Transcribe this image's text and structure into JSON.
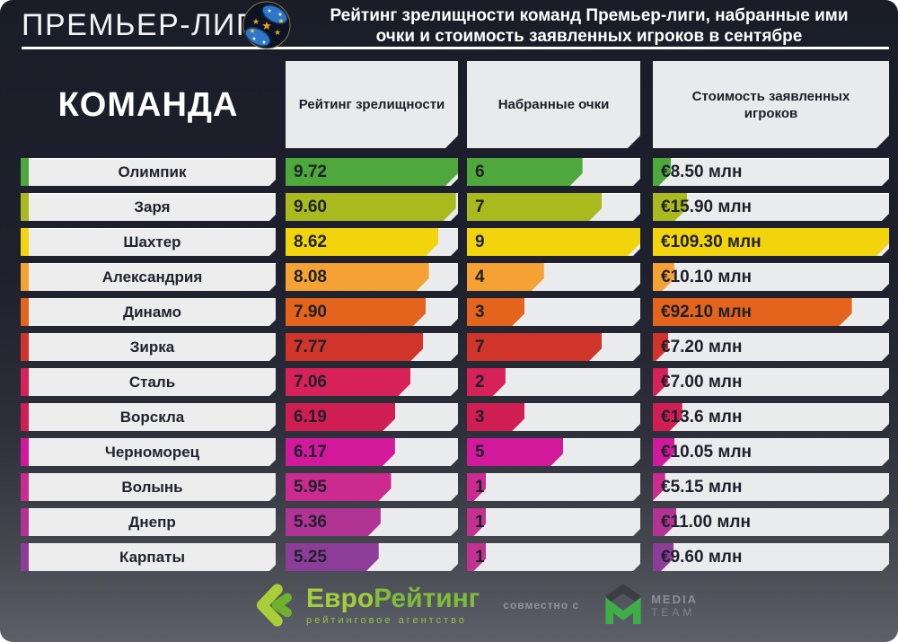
{
  "header": {
    "league": "ПРЕМЬЕР-ЛИГА",
    "title": "Рейтинг зрелищности команд Премьер-лиги, набранные ими очки и стоимость заявленных игроков в сентябре"
  },
  "columns": {
    "team": "КОМАНДА",
    "rating": "Рейтинг зрелищности",
    "points": "Набранные очки",
    "value": "Стоимость заявленных игроков"
  },
  "teams": [
    {
      "name": "Олимпик",
      "rating": "9.72",
      "rating_num": 9.72,
      "points": 6,
      "value_label": "€8.50 млн",
      "value_num": 8.5,
      "color": "#4fa83c"
    },
    {
      "name": "Заря",
      "rating": "9.60",
      "rating_num": 9.6,
      "points": 7,
      "value_label": "€15.90 млн",
      "value_num": 15.9,
      "color": "#a8ba1e"
    },
    {
      "name": "Шахтер",
      "rating": "8.62",
      "rating_num": 8.62,
      "points": 9,
      "value_label": "€109.30 млн",
      "value_num": 109.3,
      "color": "#f2d40c"
    },
    {
      "name": "Александрия",
      "rating": "8.08",
      "rating_num": 8.08,
      "points": 4,
      "value_label": "€10.10 млн",
      "value_num": 10.1,
      "color": "#f3a233"
    },
    {
      "name": "Динамо",
      "rating": "7.90",
      "rating_num": 7.9,
      "points": 3,
      "value_label": "€92.10 млн",
      "value_num": 92.1,
      "color": "#e4631d"
    },
    {
      "name": "Зирка",
      "rating": "7.77",
      "rating_num": 7.77,
      "points": 7,
      "value_label": "€7.20 млн",
      "value_num": 7.2,
      "color": "#d0342a"
    },
    {
      "name": "Сталь",
      "rating": "7.06",
      "rating_num": 7.06,
      "points": 2,
      "value_label": "€7.00 млн",
      "value_num": 7.0,
      "color": "#d62259"
    },
    {
      "name": "Ворскла",
      "rating": "6.19",
      "rating_num": 6.19,
      "points": 3,
      "value_label": "€13.6 млн",
      "value_num": 13.6,
      "color": "#d01e52"
    },
    {
      "name": "Черноморец",
      "rating": "6.17",
      "rating_num": 6.17,
      "points": 5,
      "value_label": "€10.05 млн",
      "value_num": 10.05,
      "color": "#d2189b"
    },
    {
      "name": "Волынь",
      "rating": "5.95",
      "rating_num": 5.95,
      "points": 1,
      "value_label": "€5.15 млн",
      "value_num": 5.15,
      "color": "#cb2b8e"
    },
    {
      "name": "Днепр",
      "rating": "5.36",
      "rating_num": 5.36,
      "points": 1,
      "value_label": "€11.00 млн",
      "value_num": 11.0,
      "color": "#b13394",
      "points_color": "#c2318f"
    },
    {
      "name": "Карпаты",
      "rating": "5.25",
      "rating_num": 5.25,
      "points": 1,
      "value_label": "€9.60 млн",
      "value_num": 9.6,
      "color": "#8c3d98",
      "points_color": "#c2318f"
    }
  ],
  "chart_data": {
    "type": "bar",
    "orientation": "horizontal",
    "title": "Рейтинг зрелищности команд Премьер-лиги, набранные ими очки и стоимость заявленных игроков в сентябре",
    "categories": [
      "Олимпик",
      "Заря",
      "Шахтер",
      "Александрия",
      "Динамо",
      "Зирка",
      "Сталь",
      "Ворскла",
      "Черноморец",
      "Волынь",
      "Днепр",
      "Карпаты"
    ],
    "series": [
      {
        "name": "Рейтинг зрелищности",
        "values": [
          9.72,
          9.6,
          8.62,
          8.08,
          7.9,
          7.77,
          7.06,
          6.19,
          6.17,
          5.95,
          5.36,
          5.25
        ]
      },
      {
        "name": "Набранные очки",
        "values": [
          6,
          7,
          9,
          4,
          3,
          7,
          2,
          3,
          5,
          1,
          1,
          1
        ]
      },
      {
        "name": "Стоимость заявленных игроков (млн €)",
        "values": [
          8.5,
          15.9,
          109.3,
          10.1,
          92.1,
          7.2,
          7.0,
          13.6,
          10.05,
          5.15,
          11.0,
          9.6
        ]
      }
    ],
    "rating_max": 9.72,
    "points_max": 9,
    "value_max": 109.3,
    "grid": false,
    "legend_position": "none",
    "row_colors": [
      "#4fa83c",
      "#a8ba1e",
      "#f2d40c",
      "#f3a233",
      "#e4631d",
      "#d0342a",
      "#d62259",
      "#d01e52",
      "#d2189b",
      "#cb2b8e",
      "#b13394",
      "#8c3d98"
    ]
  },
  "footer": {
    "euro_part1": "Евро",
    "euro_part2": "Рейтинг",
    "euro_tagline": "рейтинговое агентство",
    "conjunction": "совместно с",
    "media_line1": "MEDIA",
    "media_line2": "TEAM"
  },
  "icons": {
    "league_ball": "blue ball with gold and white stars (Premier League logo)",
    "eurorating": "green double chevron mark",
    "mediateam": "green M with dark chevron"
  },
  "colors": {
    "background_top": "#1a1d28",
    "background_bottom": "#5d6069",
    "box_gray": "#eaebec",
    "text_dark": "#1d212b",
    "accent_green": "#8dc63f"
  }
}
